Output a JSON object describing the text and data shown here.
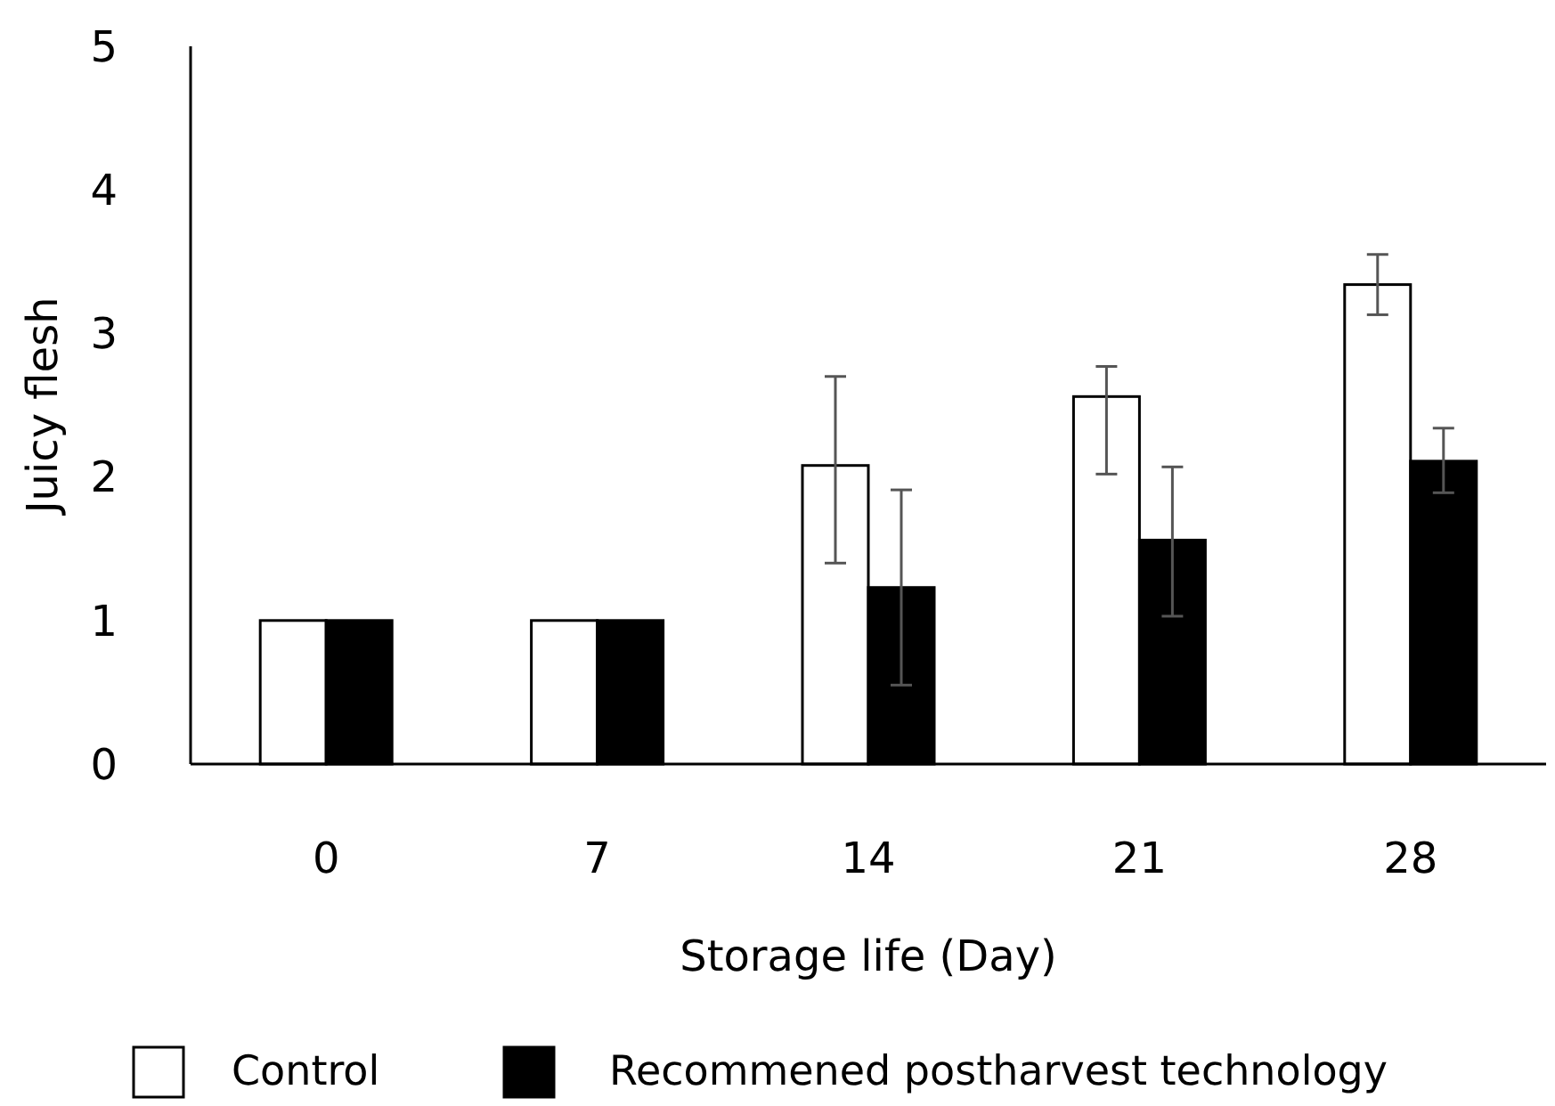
{
  "chart_data": {
    "type": "bar",
    "xlabel": "Storage life (Day)",
    "ylabel": "Juicy flesh",
    "categories": [
      "0",
      "7",
      "14",
      "21",
      "28"
    ],
    "series": [
      {
        "name": "Control",
        "color": "#ffffff",
        "values": [
          1.0,
          1.0,
          2.08,
          2.56,
          3.34
        ],
        "errors": [
          null,
          null,
          [
            1.4,
            2.7
          ],
          [
            2.02,
            2.77
          ],
          [
            3.13,
            3.55
          ]
        ]
      },
      {
        "name": "Recommened postharvest technology",
        "color": "#000000",
        "values": [
          1.0,
          1.0,
          1.23,
          1.56,
          2.11
        ],
        "errors": [
          null,
          null,
          [
            0.55,
            1.91
          ],
          [
            1.03,
            2.07
          ],
          [
            1.89,
            2.34
          ]
        ]
      }
    ],
    "ylim": [
      0,
      5
    ],
    "yticks": [
      0,
      1,
      2,
      3,
      4,
      5
    ],
    "grid": false,
    "legend": "bottom"
  }
}
